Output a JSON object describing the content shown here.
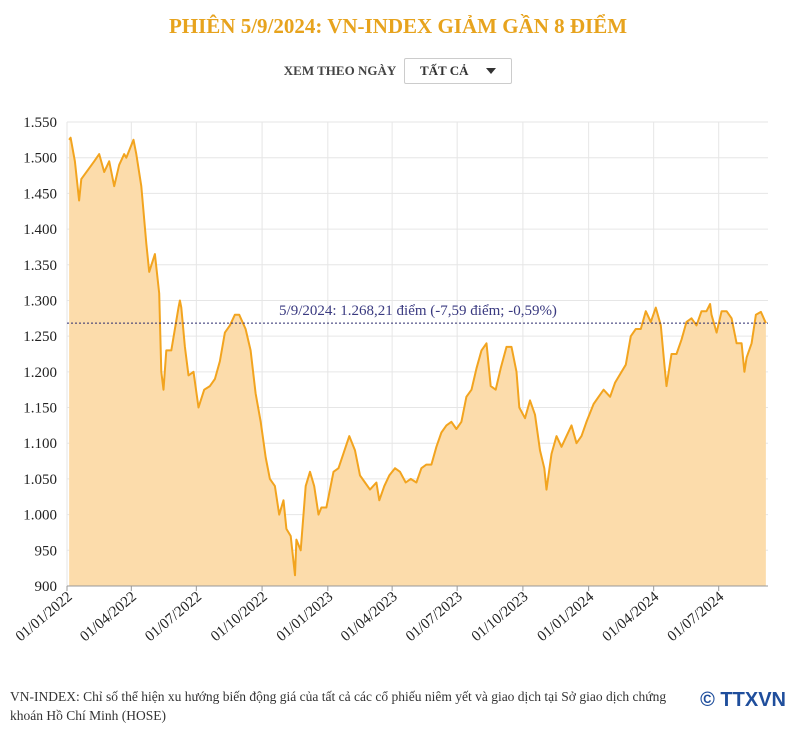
{
  "chart_data": {
    "type": "area",
    "title": "PHIÊN 5/9/2024: VN-INDEX GIẢM GẦN 8 ĐIỂM",
    "control_label": "XEM THEO NGÀY",
    "control_value": "TẤT CẢ",
    "annotation": "5/9/2024: 1.268,21 điểm (-7,59 điểm; -0,59%)",
    "note": "VN-INDEX: Chỉ số thể hiện xu hướng biến động giá của tất cả các cổ phiếu niêm yết và giao dịch tại Sở giao dịch chứng khoán Hồ Chí Minh (HOSE)",
    "source": "© TTXVN",
    "color": "#f2a41f",
    "fill": "#fcdcab",
    "grid": true,
    "xlim": [
      "2022-01-01",
      "2024-09-08"
    ],
    "xticks": [
      {
        "value": "2022-01-01",
        "label": "01/01/2022"
      },
      {
        "value": "2022-04-01",
        "label": "01/04/2022"
      },
      {
        "value": "2022-07-01",
        "label": "01/07/2022"
      },
      {
        "value": "2022-10-01",
        "label": "01/10/2022"
      },
      {
        "value": "2023-01-01",
        "label": "01/01/2023"
      },
      {
        "value": "2023-04-01",
        "label": "01/04/2023"
      },
      {
        "value": "2023-07-01",
        "label": "01/07/2023"
      },
      {
        "value": "2023-10-01",
        "label": "01/10/2023"
      },
      {
        "value": "2024-01-01",
        "label": "01/01/2024"
      },
      {
        "value": "2024-04-01",
        "label": "01/04/2024"
      },
      {
        "value": "2024-07-01",
        "label": "01/07/2024"
      }
    ],
    "ylim": [
      900,
      1550
    ],
    "yticks": [
      {
        "value": 900,
        "label": "900"
      },
      {
        "value": 950,
        "label": "950"
      },
      {
        "value": 1000,
        "label": "1.000"
      },
      {
        "value": 1050,
        "label": "1.050"
      },
      {
        "value": 1100,
        "label": "1.100"
      },
      {
        "value": 1150,
        "label": "1.150"
      },
      {
        "value": 1200,
        "label": "1.200"
      },
      {
        "value": 1250,
        "label": "1.250"
      },
      {
        "value": 1300,
        "label": "1.300"
      },
      {
        "value": 1350,
        "label": "1.350"
      },
      {
        "value": 1400,
        "label": "1.400"
      },
      {
        "value": 1450,
        "label": "1.450"
      },
      {
        "value": 1500,
        "label": "1.500"
      },
      {
        "value": 1550,
        "label": "1.550"
      }
    ],
    "x": [
      "2022-01-04",
      "2022-01-06",
      "2022-01-12",
      "2022-01-18",
      "2022-01-21",
      "2022-02-08",
      "2022-02-15",
      "2022-02-22",
      "2022-03-01",
      "2022-03-08",
      "2022-03-15",
      "2022-03-22",
      "2022-03-25",
      "2022-04-04",
      "2022-04-08",
      "2022-04-15",
      "2022-04-22",
      "2022-04-26",
      "2022-05-04",
      "2022-05-10",
      "2022-05-13",
      "2022-05-16",
      "2022-05-20",
      "2022-05-27",
      "2022-06-06",
      "2022-06-08",
      "2022-06-10",
      "2022-06-15",
      "2022-06-20",
      "2022-06-27",
      "2022-07-04",
      "2022-07-12",
      "2022-07-20",
      "2022-07-27",
      "2022-08-03",
      "2022-08-10",
      "2022-08-17",
      "2022-08-24",
      "2022-08-30",
      "2022-09-08",
      "2022-09-15",
      "2022-09-22",
      "2022-09-29",
      "2022-10-06",
      "2022-10-12",
      "2022-10-19",
      "2022-10-25",
      "2022-10-31",
      "2022-11-04",
      "2022-11-10",
      "2022-11-16",
      "2022-11-18",
      "2022-11-24",
      "2022-12-01",
      "2022-12-07",
      "2022-12-13",
      "2022-12-19",
      "2022-12-23",
      "2022-12-30",
      "2023-01-09",
      "2023-01-16",
      "2023-01-31",
      "2023-02-08",
      "2023-02-15",
      "2023-02-22",
      "2023-03-01",
      "2023-03-10",
      "2023-03-14",
      "2023-03-21",
      "2023-03-28",
      "2023-04-05",
      "2023-04-12",
      "2023-04-20",
      "2023-04-27",
      "2023-05-05",
      "2023-05-12",
      "2023-05-19",
      "2023-05-26",
      "2023-06-02",
      "2023-06-09",
      "2023-06-16",
      "2023-06-23",
      "2023-06-30",
      "2023-07-07",
      "2023-07-14",
      "2023-07-21",
      "2023-07-28",
      "2023-08-04",
      "2023-08-11",
      "2023-08-17",
      "2023-08-24",
      "2023-08-31",
      "2023-09-08",
      "2023-09-15",
      "2023-09-22",
      "2023-09-26",
      "2023-10-04",
      "2023-10-11",
      "2023-10-18",
      "2023-10-25",
      "2023-10-31",
      "2023-11-03",
      "2023-11-10",
      "2023-11-17",
      "2023-11-24",
      "2023-12-01",
      "2023-12-08",
      "2023-12-15",
      "2023-12-22",
      "2023-12-29",
      "2024-01-08",
      "2024-01-15",
      "2024-01-22",
      "2024-01-31",
      "2024-02-07",
      "2024-02-22",
      "2024-02-29",
      "2024-03-07",
      "2024-03-14",
      "2024-03-21",
      "2024-03-28",
      "2024-04-04",
      "2024-04-11",
      "2024-04-16",
      "2024-04-19",
      "2024-04-26",
      "2024-05-03",
      "2024-05-10",
      "2024-05-17",
      "2024-05-24",
      "2024-05-31",
      "2024-06-07",
      "2024-06-14",
      "2024-06-19",
      "2024-06-21",
      "2024-06-28",
      "2024-07-05",
      "2024-07-12",
      "2024-07-19",
      "2024-07-26",
      "2024-08-02",
      "2024-08-06",
      "2024-08-09",
      "2024-08-16",
      "2024-08-22",
      "2024-08-29",
      "2024-09-05"
    ],
    "values": [
      1525,
      1528,
      1495,
      1440,
      1470,
      1495,
      1505,
      1480,
      1495,
      1460,
      1490,
      1505,
      1500,
      1525,
      1505,
      1460,
      1380,
      1340,
      1365,
      1310,
      1200,
      1175,
      1230,
      1230,
      1290,
      1300,
      1290,
      1235,
      1195,
      1200,
      1150,
      1175,
      1180,
      1190,
      1215,
      1255,
      1265,
      1280,
      1280,
      1260,
      1230,
      1170,
      1130,
      1080,
      1050,
      1040,
      1000,
      1020,
      980,
      970,
      915,
      965,
      950,
      1040,
      1060,
      1040,
      1000,
      1010,
      1010,
      1060,
      1065,
      1110,
      1090,
      1055,
      1045,
      1035,
      1045,
      1020,
      1040,
      1055,
      1065,
      1060,
      1045,
      1050,
      1045,
      1065,
      1070,
      1070,
      1095,
      1115,
      1125,
      1130,
      1120,
      1130,
      1165,
      1175,
      1205,
      1230,
      1240,
      1180,
      1175,
      1205,
      1235,
      1235,
      1200,
      1150,
      1135,
      1160,
      1140,
      1090,
      1065,
      1035,
      1085,
      1110,
      1095,
      1110,
      1125,
      1100,
      1110,
      1130,
      1155,
      1165,
      1175,
      1165,
      1185,
      1210,
      1250,
      1260,
      1260,
      1285,
      1270,
      1290,
      1265,
      1210,
      1180,
      1225,
      1225,
      1245,
      1270,
      1275,
      1265,
      1285,
      1285,
      1295,
      1280,
      1255,
      1285,
      1285,
      1275,
      1240,
      1240,
      1200,
      1220,
      1240,
      1280,
      1284,
      1268.21
    ]
  }
}
